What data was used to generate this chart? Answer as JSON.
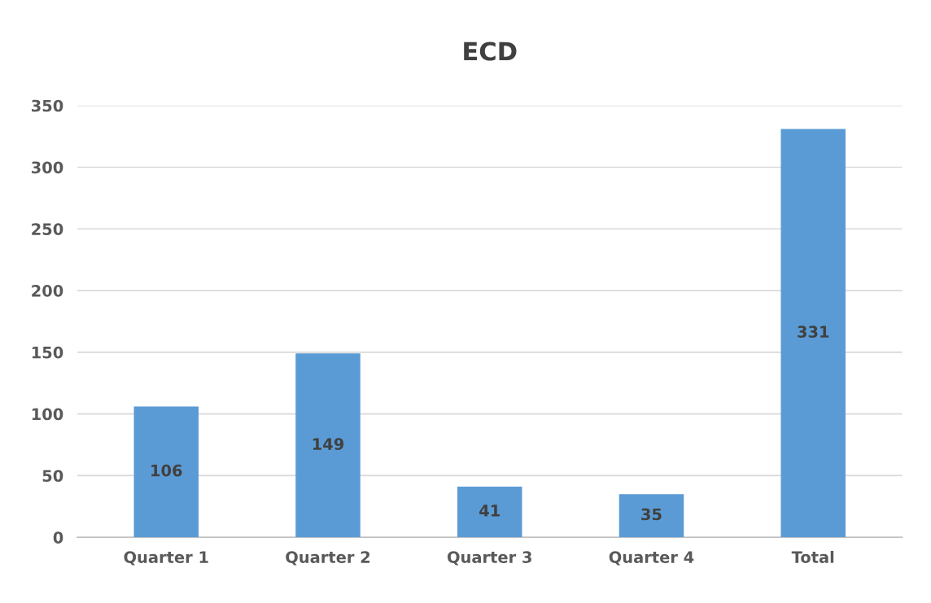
{
  "chart_data": {
    "type": "bar",
    "title": "ECD",
    "categories": [
      "Quarter 1",
      "Quarter 2",
      "Quarter 3",
      "Quarter 4",
      "Total"
    ],
    "values": [
      106,
      149,
      41,
      35,
      331
    ],
    "color": "#5b9bd5",
    "ylim": [
      0,
      350
    ],
    "yticks": [
      0,
      50,
      100,
      150,
      200,
      250,
      300,
      350
    ],
    "grid": "y",
    "data_labels": true,
    "legend": false
  }
}
